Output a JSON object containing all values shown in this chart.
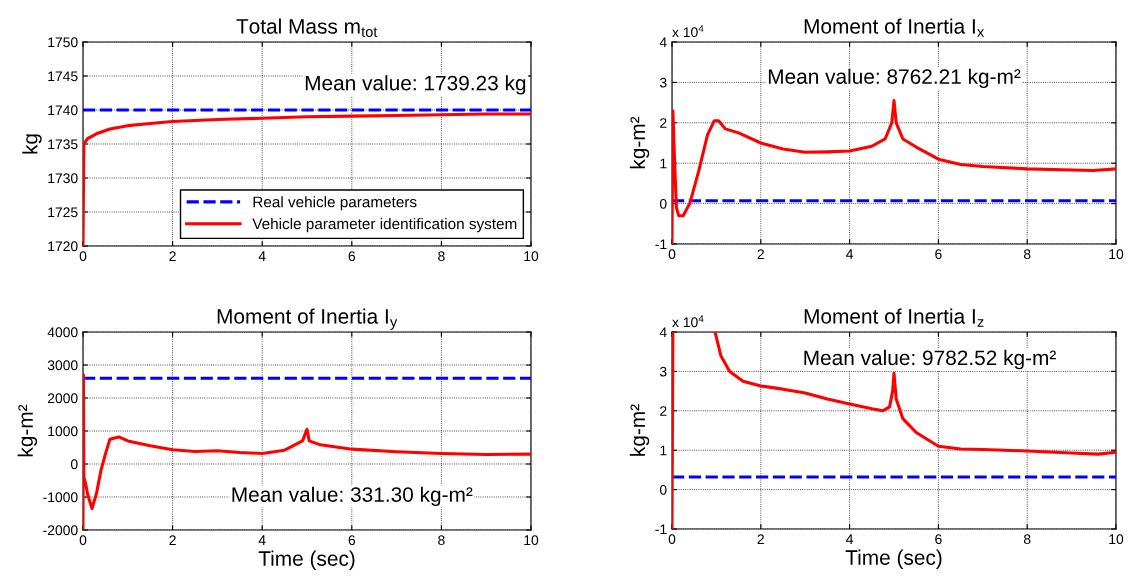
{
  "chart_data": [
    {
      "type": "line",
      "title": "Total Mass m$_{tot}$",
      "ylabel": "kg",
      "xlim": [
        0,
        10
      ],
      "ylim": [
        1720,
        1750
      ],
      "xticks": [
        0,
        2,
        4,
        6,
        8,
        10
      ],
      "yticks": [
        1720,
        1725,
        1730,
        1735,
        1740,
        1745,
        1750
      ],
      "grid": true,
      "legend": "bottom right",
      "annotations": [
        "Mean value: 1739.23 kg"
      ],
      "series": [
        {
          "name": "Real vehicle parameters",
          "color": "#0000ff",
          "line_style": "dashed",
          "x": [
            0,
            10
          ],
          "values": [
            1740,
            1740
          ]
        },
        {
          "name": "Vehicle parameter identification system",
          "color": "#ff0000",
          "line_style": "solid",
          "x": [
            0,
            0.02,
            0.1,
            0.3,
            0.6,
            1,
            1.5,
            2,
            3,
            4,
            5,
            6,
            7,
            8,
            9,
            10
          ],
          "values": [
            1720,
            1735,
            1735.8,
            1736.5,
            1737.2,
            1737.7,
            1738.0,
            1738.3,
            1738.6,
            1738.8,
            1739.0,
            1739.1,
            1739.2,
            1739.3,
            1739.4,
            1739.4
          ]
        }
      ]
    },
    {
      "type": "line",
      "title": "Moment of Inertia I$_{x}$",
      "ylabel": "kg-m²",
      "xlim": [
        0,
        10
      ],
      "ylim": [
        -1,
        4
      ],
      "xticks": [
        0,
        2,
        4,
        6,
        8,
        10
      ],
      "yticks": [
        -1,
        0,
        1,
        2,
        3,
        4
      ],
      "grid": true,
      "annotations": [
        "Mean value: 8762.21 kg-m²",
        "x 10$^{4}$"
      ],
      "series": [
        {
          "color": "#0000ff",
          "line_style": "dashed",
          "x": [
            0,
            10
          ],
          "values": [
            0.07,
            0.07
          ]
        },
        {
          "color": "#ff0000",
          "line_style": "solid",
          "x": [
            0,
            0.02,
            0.06,
            0.1,
            0.15,
            0.25,
            0.4,
            0.6,
            0.8,
            0.95,
            1.05,
            1.2,
            1.5,
            2,
            2.5,
            3,
            3.5,
            4,
            4.5,
            4.8,
            4.95,
            5.0,
            5.05,
            5.2,
            5.5,
            6,
            6.5,
            7,
            8,
            9,
            9.5,
            10
          ],
          "values": [
            -1,
            2.3,
            1.0,
            -0.1,
            -0.3,
            -0.3,
            0.0,
            0.8,
            1.7,
            2.05,
            2.05,
            1.85,
            1.75,
            1.5,
            1.35,
            1.27,
            1.28,
            1.3,
            1.42,
            1.6,
            2.0,
            2.55,
            2.0,
            1.6,
            1.4,
            1.1,
            0.97,
            0.92,
            0.86,
            0.83,
            0.82,
            0.86
          ]
        }
      ]
    },
    {
      "type": "line",
      "title": "Moment of Inertia I$_{y}$",
      "xlabel": "Time (sec)",
      "ylabel": "kg-m²",
      "xlim": [
        0,
        10
      ],
      "ylim": [
        -2000,
        4000
      ],
      "xticks": [
        0,
        2,
        4,
        6,
        8,
        10
      ],
      "yticks": [
        -2000,
        -1000,
        0,
        1000,
        2000,
        3000,
        4000
      ],
      "grid": true,
      "annotations": [
        "Mean value: 331.30 kg-m²"
      ],
      "series": [
        {
          "color": "#0000ff",
          "line_style": "dashed",
          "x": [
            0,
            10
          ],
          "values": [
            2600,
            2600
          ]
        },
        {
          "color": "#ff0000",
          "line_style": "solid",
          "x": [
            0,
            0.01,
            0.02,
            0.06,
            0.1,
            0.2,
            0.3,
            0.4,
            0.5,
            0.6,
            0.8,
            1,
            1.5,
            2,
            2.5,
            3,
            3.5,
            4,
            4.5,
            4.9,
            5.0,
            5.05,
            5.3,
            6,
            7,
            8,
            9,
            10
          ],
          "values": [
            -2000,
            2700,
            -400,
            -600,
            -900,
            -1350,
            -900,
            -200,
            300,
            750,
            820,
            700,
            550,
            430,
            380,
            400,
            350,
            320,
            420,
            700,
            1050,
            700,
            580,
            450,
            370,
            320,
            290,
            300
          ]
        }
      ]
    },
    {
      "type": "line",
      "title": "Moment of Inertia I$_{z}$",
      "xlabel": "Time (sec)",
      "ylabel": "kg-m²",
      "xlim": [
        0,
        10
      ],
      "ylim": [
        -1,
        4
      ],
      "xticks": [
        0,
        2,
        4,
        6,
        8,
        10
      ],
      "yticks": [
        -1,
        0,
        1,
        2,
        3,
        4
      ],
      "grid": true,
      "annotations": [
        "Mean value: 9782.52 kg-m²",
        "x 10$^{4}$"
      ],
      "series": [
        {
          "color": "#0000ff",
          "line_style": "dashed",
          "x": [
            0,
            10
          ],
          "values": [
            0.32,
            0.32
          ]
        },
        {
          "color": "#ff0000",
          "line_style": "solid",
          "x": [
            0,
            0.02,
            0.5,
            0.97,
            1.1,
            1.3,
            1.6,
            2,
            2.5,
            3,
            3.5,
            4,
            4.5,
            4.75,
            4.9,
            4.97,
            5.0,
            5.05,
            5.2,
            5.5,
            6,
            6.5,
            7,
            8,
            9,
            9.6,
            10
          ],
          "values": [
            -1,
            4,
            null,
            4,
            3.4,
            3.0,
            2.75,
            2.63,
            2.55,
            2.45,
            2.3,
            2.17,
            2.05,
            2.0,
            2.1,
            2.5,
            2.95,
            2.3,
            1.8,
            1.45,
            1.1,
            1.03,
            1.02,
            0.98,
            0.93,
            0.9,
            0.95
          ]
        }
      ]
    }
  ]
}
